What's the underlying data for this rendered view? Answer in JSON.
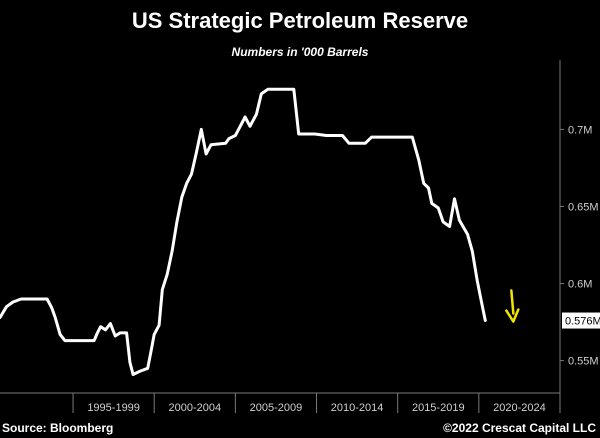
{
  "header": {
    "title": "US Strategic Petroleum Reserve",
    "subtitle": "Numbers in '000 Barrels"
  },
  "footer": {
    "source": "Source: Bloomberg",
    "copyright": "©2022 Crescat Capital LLC"
  },
  "colors": {
    "background": "#000000",
    "line": "#ffffff",
    "arrow": "#f2e600",
    "axis": "#7a7a7a"
  },
  "chart_data": {
    "type": "line",
    "title": "US Strategic Petroleum Reserve",
    "subtitle": "Numbers in '000 Barrels",
    "xlabel": "",
    "ylabel": "",
    "x_unit": "year",
    "xlim": [
      1990.5,
      2025.0
    ],
    "ylim": [
      0.529,
      0.745
    ],
    "y_scale_unit": "million barrels",
    "y_ticks": [
      {
        "value": 0.55,
        "label": "0.55M"
      },
      {
        "value": 0.6,
        "label": "0.6M"
      },
      {
        "value": 0.65,
        "label": "0.65M"
      },
      {
        "value": 0.7,
        "label": "0.7M"
      }
    ],
    "x_category_labels": [
      "1995-1999",
      "2000-2004",
      "2005-2009",
      "2010-2014",
      "2015-2019",
      "2020-2024"
    ],
    "x_category_starts": [
      1995,
      2000,
      2005,
      2010,
      2015,
      2020,
      2025
    ],
    "last_value_label": "0.576M",
    "grid": false,
    "legend": "none",
    "annotation": "yellow downward arrow next to latest value",
    "series": [
      {
        "values": [
          [
            1990.5,
            0.578
          ],
          [
            1990.9,
            0.585
          ],
          [
            1991.3,
            0.588
          ],
          [
            1991.8,
            0.59
          ],
          [
            1993.4,
            0.59
          ],
          [
            1993.7,
            0.584
          ],
          [
            1993.9,
            0.578
          ],
          [
            1994.2,
            0.567
          ],
          [
            1994.5,
            0.563
          ],
          [
            1995.2,
            0.563
          ],
          [
            1996.3,
            0.563
          ],
          [
            1996.5,
            0.568
          ],
          [
            1996.7,
            0.572
          ],
          [
            1997.0,
            0.57
          ],
          [
            1997.3,
            0.574
          ],
          [
            1997.6,
            0.566
          ],
          [
            1997.9,
            0.568
          ],
          [
            1998.3,
            0.568
          ],
          [
            1998.5,
            0.549
          ],
          [
            1998.7,
            0.541
          ],
          [
            1999.1,
            0.543
          ],
          [
            1999.6,
            0.545
          ],
          [
            1999.8,
            0.556
          ],
          [
            2000.0,
            0.567
          ],
          [
            2000.3,
            0.573
          ],
          [
            2000.5,
            0.596
          ],
          [
            2000.8,
            0.606
          ],
          [
            2001.1,
            0.621
          ],
          [
            2001.4,
            0.64
          ],
          [
            2001.7,
            0.656
          ],
          [
            2002.0,
            0.665
          ],
          [
            2002.3,
            0.671
          ],
          [
            2002.6,
            0.685
          ],
          [
            2002.9,
            0.7
          ],
          [
            2003.2,
            0.684
          ],
          [
            2003.5,
            0.69
          ],
          [
            2004.4,
            0.691
          ],
          [
            2004.6,
            0.694
          ],
          [
            2005.0,
            0.696
          ],
          [
            2005.3,
            0.702
          ],
          [
            2005.6,
            0.708
          ],
          [
            2005.9,
            0.702
          ],
          [
            2006.3,
            0.71
          ],
          [
            2006.6,
            0.723
          ],
          [
            2007.0,
            0.726
          ],
          [
            2008.6,
            0.726
          ],
          [
            2008.9,
            0.697
          ],
          [
            2009.9,
            0.697
          ],
          [
            2010.6,
            0.696
          ],
          [
            2011.6,
            0.696
          ],
          [
            2012.0,
            0.691
          ],
          [
            2013.0,
            0.691
          ],
          [
            2013.4,
            0.695
          ],
          [
            2015.2,
            0.695
          ],
          [
            2015.9,
            0.695
          ],
          [
            2016.3,
            0.68
          ],
          [
            2016.6,
            0.665
          ],
          [
            2016.9,
            0.662
          ],
          [
            2017.1,
            0.652
          ],
          [
            2017.5,
            0.649
          ],
          [
            2017.8,
            0.64
          ],
          [
            2018.2,
            0.637
          ],
          [
            2018.5,
            0.655
          ],
          [
            2018.8,
            0.641
          ],
          [
            2019.3,
            0.632
          ],
          [
            2019.6,
            0.621
          ],
          [
            2019.9,
            0.602
          ],
          [
            2020.2,
            0.586
          ],
          [
            2020.4,
            0.576
          ]
        ]
      }
    ]
  }
}
